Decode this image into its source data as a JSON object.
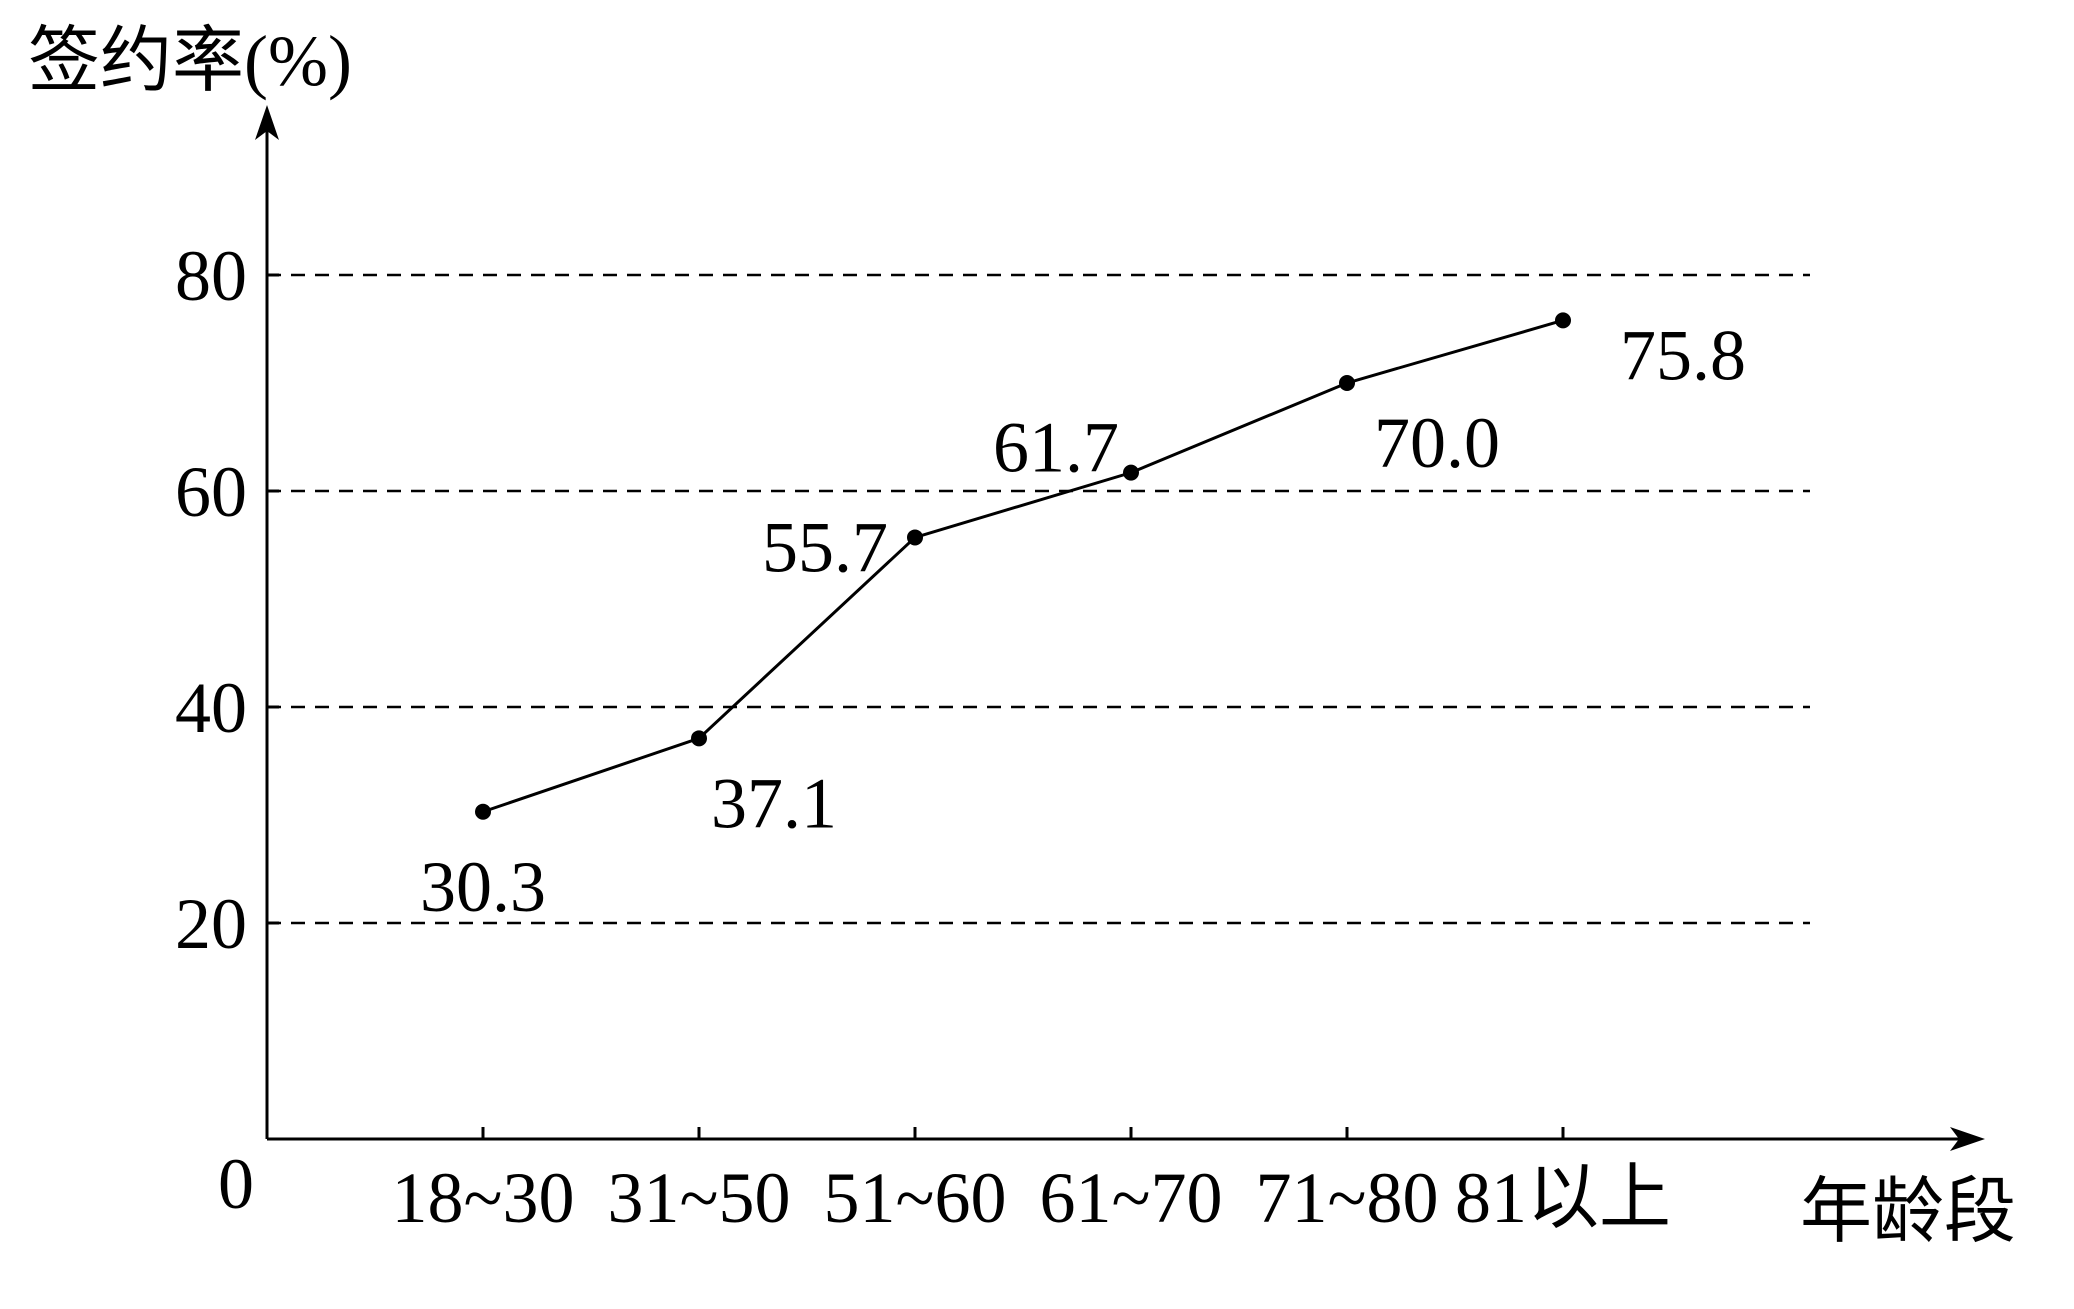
{
  "chart_data": {
    "type": "line",
    "title": "",
    "ylabel": "签约率(%)",
    "xlabel": "年龄段",
    "origin_label": "0",
    "categories": [
      "18~30",
      "31~50",
      "51~60",
      "61~70",
      "71~80",
      "81以上"
    ],
    "series": [
      {
        "values": [
          30.3,
          37.1,
          55.7,
          61.7,
          70.0,
          75.8
        ],
        "data_labels": [
          "30.3",
          "37.1",
          "55.7",
          "61.7",
          "70.0",
          "75.8"
        ]
      }
    ],
    "yticks": [
      20,
      40,
      60,
      80
    ],
    "ytick_labels": [
      "20",
      "40",
      "60",
      "80"
    ],
    "ylim": [
      0,
      80
    ],
    "grid": "dashed horizontal at y ticks",
    "legend": "none"
  }
}
